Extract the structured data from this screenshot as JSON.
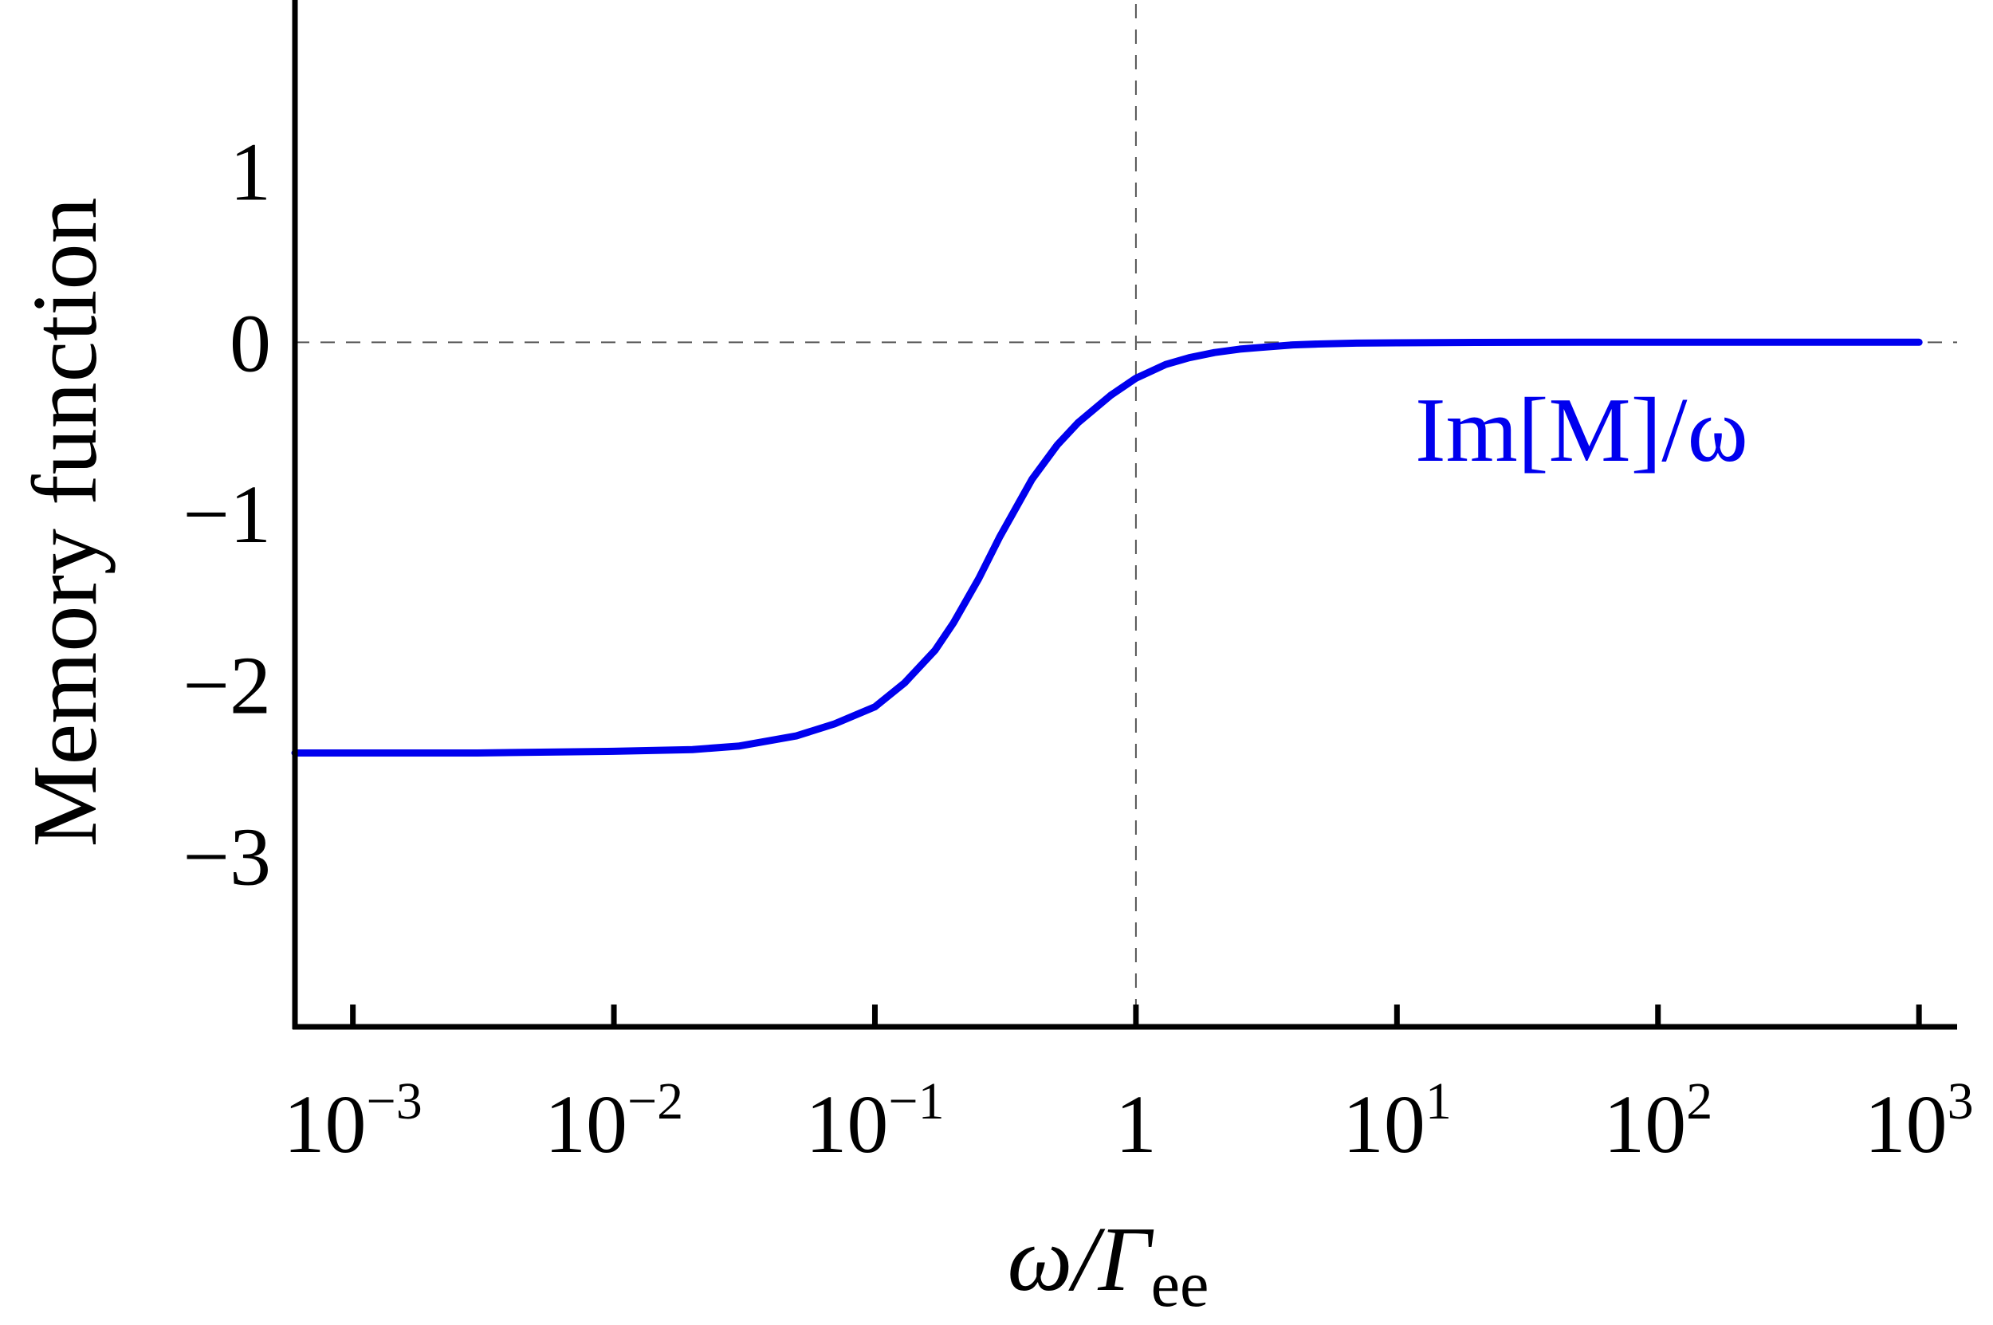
{
  "chart_data": {
    "type": "line",
    "xlabel": {
      "main": "ω/Γ",
      "sub": "ee"
    },
    "ylabel": "Memory function",
    "x_scale": "log",
    "xlim": [
      0.0006,
      1400
    ],
    "ylim": [
      -4.0,
      2.0
    ],
    "x_ticks": [
      {
        "value": 0.001,
        "base": "10",
        "exp": "−3"
      },
      {
        "value": 0.01,
        "base": "10",
        "exp": "−2"
      },
      {
        "value": 0.1,
        "base": "10",
        "exp": "−1"
      },
      {
        "value": 1,
        "base": "1",
        "exp": ""
      },
      {
        "value": 10,
        "base": "10",
        "exp": "1"
      },
      {
        "value": 100,
        "base": "10",
        "exp": "2"
      },
      {
        "value": 1000,
        "base": "10",
        "exp": "3"
      }
    ],
    "y_ticks": [
      {
        "value": 1,
        "label": "1"
      },
      {
        "value": 0,
        "label": "0"
      },
      {
        "value": -1,
        "label": "−1"
      },
      {
        "value": -2,
        "label": "−2"
      },
      {
        "value": -3,
        "label": "−3"
      }
    ],
    "reference_lines": {
      "x": 1,
      "y": 0,
      "style": "dashed",
      "color": "#555555"
    },
    "series": [
      {
        "name": "Im[M]/ω",
        "color": "#0000ee",
        "x": [
          0.0006,
          0.001,
          0.003,
          0.01,
          0.02,
          0.03,
          0.05,
          0.07,
          0.1,
          0.13,
          0.17,
          0.2,
          0.25,
          0.3,
          0.4,
          0.5,
          0.6,
          0.8,
          1,
          1.3,
          1.6,
          2,
          2.5,
          3,
          4,
          5,
          7,
          10,
          20,
          50,
          100,
          300,
          1000
        ],
        "y": [
          -2.4,
          -2.4,
          -2.4,
          -2.39,
          -2.38,
          -2.36,
          -2.3,
          -2.23,
          -2.13,
          -1.99,
          -1.8,
          -1.64,
          -1.38,
          -1.14,
          -0.8,
          -0.6,
          -0.47,
          -0.31,
          -0.21,
          -0.13,
          -0.09,
          -0.06,
          -0.04,
          -0.03,
          -0.015,
          -0.01,
          -0.005,
          -0.003,
          -0.001,
          0,
          0,
          0,
          0
        ]
      }
    ]
  }
}
